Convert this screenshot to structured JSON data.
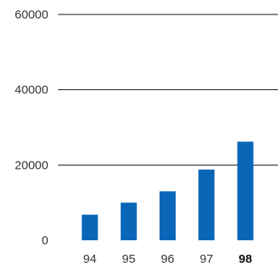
{
  "chart_data": {
    "type": "bar",
    "categories": [
      "94",
      "95",
      "96",
      "97",
      "98"
    ],
    "values": [
      6800,
      10000,
      13000,
      18800,
      26200
    ],
    "bold_categories": [
      "98"
    ],
    "y_ticks": [
      "0",
      "20000",
      "40000",
      "60000"
    ],
    "ylim": [
      0,
      60000
    ],
    "grid": true,
    "bar_color": "#0a67b8",
    "grid_color": "#111111",
    "text_color": "#333333"
  }
}
